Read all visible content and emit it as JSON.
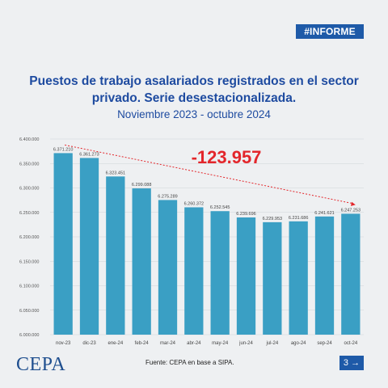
{
  "tag": "#INFORME",
  "title": "Puestos de trabajo asalariados registrados en el sector privado. Serie desestacionalizada.",
  "subtitle": "Noviembre 2023 - octubre 2024",
  "source": "Fuente: CEPA en base a SIPA.",
  "logo": "CEPA",
  "page_number": "3",
  "arrow_icon": "arrow-right-icon",
  "colors": {
    "bar": "#3a9fc4",
    "accent": "#e3262b",
    "brand": "#1e5aa8"
  },
  "chart_data": {
    "type": "bar",
    "categories": [
      "nov-23",
      "dic-23",
      "ene-24",
      "feb-24",
      "mar-24",
      "abr-24",
      "may-24",
      "jun-24",
      "jul-24",
      "ago-24",
      "sep-24",
      "oct-24"
    ],
    "values": [
      6371210,
      6361273,
      6323451,
      6299088,
      6275289,
      6260372,
      6252545,
      6239696,
      6229953,
      6231686,
      6241621,
      6247253
    ],
    "value_labels": [
      "6.371.210",
      "6.361.273",
      "6.323.451",
      "6.299.088",
      "6.275.289",
      "6.260.372",
      "6.252.545",
      "6.239.696",
      "6.229.953",
      "6.231.686",
      "6.241.621",
      "6.247.253"
    ],
    "ylim": [
      6000000,
      6400000
    ],
    "ytick_labels": [
      "6.000.000",
      "6.050.000",
      "6.100.000",
      "6.150.000",
      "6.200.000",
      "6.250.000",
      "6.300.000",
      "6.350.000",
      "6.400.000"
    ],
    "grid": true,
    "annotation": "-123.957",
    "title": "Puestos de trabajo asalariados registrados en el sector privado. Serie desestacionalizada.",
    "xlabel": "",
    "ylabel": ""
  }
}
